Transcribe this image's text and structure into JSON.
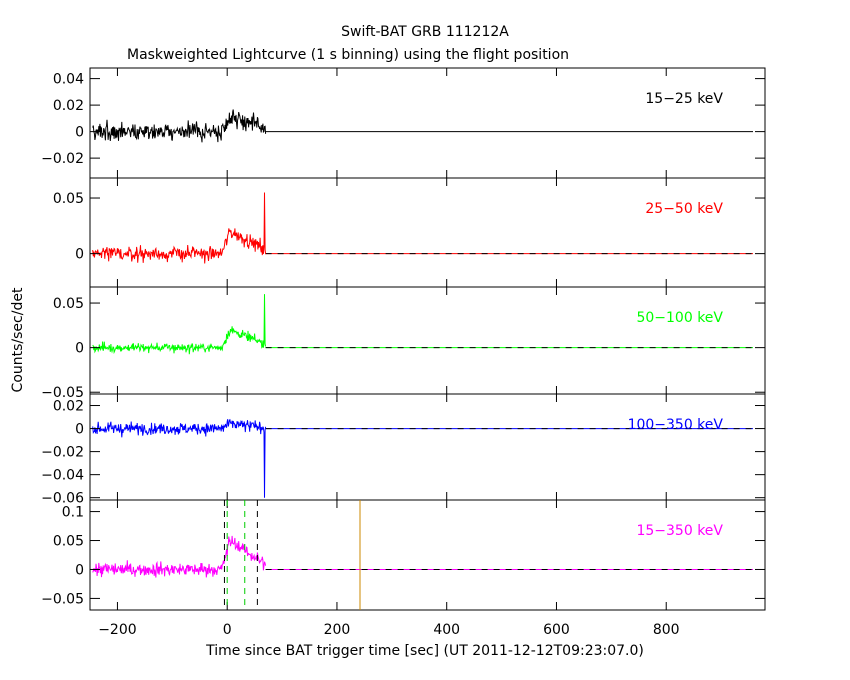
{
  "chart_data": {
    "type": "line",
    "title": "Swift-BAT GRB 111212A",
    "subtitle": "Maskweighted Lightcurve (1 s binning) using the flight position",
    "xlabel": "Time since BAT trigger time [sec] (UT 2011-12-12T09:23:07.0)",
    "ylabel": "Counts/sec/det",
    "xlim": [
      -250,
      980
    ],
    "xticks": [
      "−200",
      "0",
      "200",
      "400",
      "600",
      "800"
    ],
    "xtick_values": [
      -200,
      0,
      200,
      400,
      600,
      800
    ],
    "data_x_range": [
      -245,
      70
    ],
    "vertical_markers": [
      {
        "x": -5,
        "color": "#000000",
        "style": "dashed",
        "panel": "15-350 keV"
      },
      {
        "x": 55,
        "color": "#000000",
        "style": "dashed",
        "panel": "15-350 keV"
      },
      {
        "x": 0,
        "color": "#00cc00",
        "style": "dashed",
        "panel": "15-350 keV"
      },
      {
        "x": 32,
        "color": "#00cc00",
        "style": "dashed",
        "panel": "15-350 keV"
      },
      {
        "x": 242,
        "color": "#cc8800",
        "style": "solid",
        "panel": "15-350 keV"
      }
    ],
    "series": [
      {
        "name": "15−25 keV",
        "color": "#000000",
        "ylim": [
          -0.035,
          0.048
        ],
        "yticks": [
          "0.04",
          "0.02",
          "0",
          "−0.02"
        ],
        "ytick_values": [
          0.04,
          0.02,
          0,
          -0.02
        ],
        "noise_sigma": 0.01,
        "burst_peak": 0.012,
        "tail_spike": 0.0
      },
      {
        "name": "25−50 keV",
        "color": "#ff0000",
        "ylim": [
          -0.03,
          0.068
        ],
        "yticks": [
          "0.05",
          "0"
        ],
        "ytick_values": [
          0.05,
          0
        ],
        "noise_sigma": 0.01,
        "burst_peak": 0.02,
        "tail_spike": 0.055
      },
      {
        "name": "50−100 keV",
        "color": "#00ff00",
        "ylim": [
          -0.052,
          0.068
        ],
        "yticks": [
          "0.05",
          "0",
          "−0.05"
        ],
        "ytick_values": [
          0.05,
          0,
          -0.05
        ],
        "noise_sigma": 0.008,
        "burst_peak": 0.02,
        "tail_spike": 0.06
      },
      {
        "name": "100−350 keV",
        "color": "#0000ff",
        "ylim": [
          -0.062,
          0.03
        ],
        "yticks": [
          "0.02",
          "0",
          "−0.02",
          "−0.04",
          "−0.06"
        ],
        "ytick_values": [
          0.02,
          0,
          -0.02,
          -0.04,
          -0.06
        ],
        "noise_sigma": 0.008,
        "burst_peak": 0.004,
        "tail_spike": -0.06
      },
      {
        "name": "15−350 keV",
        "color": "#ff00ff",
        "ylim": [
          -0.07,
          0.12
        ],
        "yticks": [
          "0.1",
          "0.05",
          "0",
          "−0.05"
        ],
        "ytick_values": [
          0.1,
          0.05,
          0,
          -0.05
        ],
        "noise_sigma": 0.018,
        "burst_peak": 0.05,
        "tail_spike": 0.0
      }
    ]
  }
}
